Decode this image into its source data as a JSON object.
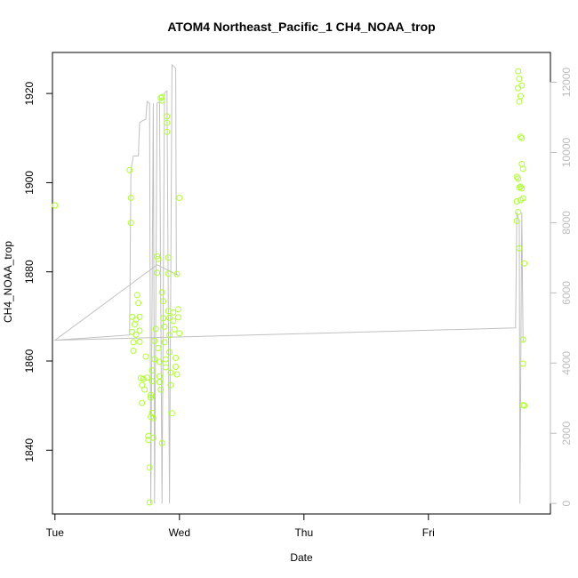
{
  "chart_data": {
    "type": "scatter",
    "title": "ATOM4 Northeast_Pacific_1 CH4_NOAA_trop",
    "xlabel": "Date",
    "ylabel": "CH4_NOAA_trop",
    "x_ticks": [
      "Tue",
      "Wed",
      "Thu",
      "Fri"
    ],
    "y_ticks": [
      1840,
      1860,
      1880,
      1900,
      1920
    ],
    "y2_ticks": [
      0,
      2000,
      4000,
      6000,
      8000,
      10000,
      12000
    ],
    "xlim": [
      -0.02,
      3.98
    ],
    "ylim": [
      1825.7,
      1929.2
    ],
    "y2lim": [
      -300,
      12850
    ],
    "grid": false,
    "colors": {
      "points": "#adff2f",
      "line": "#c0c0c0",
      "axis": "#000000",
      "right_axis": "#bdbdbd"
    },
    "series": [
      {
        "type": "scatter",
        "y_axis": "left",
        "points": [
          [
            0.0,
            1894.9
          ],
          [
            0.6,
            1902.8
          ],
          [
            0.61,
            1896.6
          ],
          [
            0.61,
            1891.0
          ],
          [
            0.62,
            1869.9
          ],
          [
            0.62,
            1866.5
          ],
          [
            0.63,
            1864.2
          ],
          [
            0.63,
            1862.3
          ],
          [
            0.64,
            1868.2
          ],
          [
            0.65,
            1869.3
          ],
          [
            0.65,
            1865.9
          ],
          [
            0.66,
            1874.8
          ],
          [
            0.67,
            1873.0
          ],
          [
            0.68,
            1869.9
          ],
          [
            0.68,
            1866.8
          ],
          [
            0.68,
            1864.3
          ],
          [
            0.69,
            1856.2
          ],
          [
            0.7,
            1854.6
          ],
          [
            0.7,
            1850.6
          ],
          [
            0.71,
            1856.0
          ],
          [
            0.72,
            1853.6
          ],
          [
            0.73,
            1861.0
          ],
          [
            0.74,
            1856.3
          ],
          [
            0.75,
            1843.2
          ],
          [
            0.75,
            1842.3
          ],
          [
            0.76,
            1828.3
          ],
          [
            0.76,
            1836.1
          ],
          [
            0.77,
            1852.4
          ],
          [
            0.77,
            1851.8
          ],
          [
            0.77,
            1847.5
          ],
          [
            0.78,
            1855.5
          ],
          [
            0.78,
            1857.9
          ],
          [
            0.79,
            1842.8
          ],
          [
            0.79,
            1847.2
          ],
          [
            0.8,
            1864.5
          ],
          [
            0.81,
            1867.2
          ],
          [
            0.82,
            1879.8
          ],
          [
            0.82,
            1883.5
          ],
          [
            0.83,
            1882.9
          ],
          [
            0.83,
            1862.9
          ],
          [
            0.84,
            1859.8
          ],
          [
            0.84,
            1856.6
          ],
          [
            0.84,
            1855.3
          ],
          [
            0.85,
            1853.6
          ],
          [
            0.85,
            1919.0
          ],
          [
            0.86,
            1918.4
          ],
          [
            0.86,
            1919.2
          ],
          [
            0.86,
            1875.4
          ],
          [
            0.87,
            1873.4
          ],
          [
            0.87,
            1869.6
          ],
          [
            0.88,
            1867.7
          ],
          [
            0.88,
            1864.2
          ],
          [
            0.89,
            1860.4
          ],
          [
            0.89,
            1858.6
          ],
          [
            0.9,
            1914.9
          ],
          [
            0.9,
            1913.4
          ],
          [
            0.9,
            1911.4
          ],
          [
            0.91,
            1883.2
          ],
          [
            0.91,
            1879.6
          ],
          [
            0.91,
            1871.2
          ],
          [
            0.92,
            1869.7
          ],
          [
            0.92,
            1865.8
          ],
          [
            0.92,
            1862.0
          ],
          [
            0.93,
            1857.4
          ],
          [
            0.93,
            1854.6
          ],
          [
            0.94,
            1848.3
          ],
          [
            0.95,
            1870.9
          ],
          [
            0.95,
            1869.0
          ],
          [
            0.96,
            1867.1
          ],
          [
            0.97,
            1860.7
          ],
          [
            0.97,
            1858.7
          ],
          [
            0.98,
            1857.0
          ],
          [
            0.98,
            1879.5
          ],
          [
            0.99,
            1871.6
          ],
          [
            0.99,
            1869.8
          ],
          [
            1.0,
            1866.2
          ],
          [
            1.0,
            1896.6
          ],
          [
            0.86,
            1841.6
          ],
          [
            0.78,
            1848.4
          ],
          [
            0.8,
            1860.4
          ],
          [
            3.72,
            1925.0
          ],
          [
            3.72,
            1921.2
          ],
          [
            3.73,
            1923.3
          ],
          [
            3.73,
            1918.2
          ],
          [
            3.74,
            1919.4
          ],
          [
            3.75,
            1921.8
          ],
          [
            3.74,
            1910.3
          ],
          [
            3.75,
            1910.0
          ],
          [
            3.75,
            1904.2
          ],
          [
            3.76,
            1903.1
          ],
          [
            3.71,
            1901.3
          ],
          [
            3.72,
            1900.9
          ],
          [
            3.73,
            1898.9
          ],
          [
            3.74,
            1899.1
          ],
          [
            3.75,
            1898.7
          ],
          [
            3.71,
            1895.8
          ],
          [
            3.72,
            1893.4
          ],
          [
            3.71,
            1891.4
          ],
          [
            3.74,
            1896.1
          ],
          [
            3.76,
            1896.5
          ],
          [
            3.73,
            1885.3
          ],
          [
            3.77,
            1881.9
          ],
          [
            3.76,
            1864.8
          ],
          [
            3.76,
            1859.4
          ],
          [
            3.77,
            1850.0
          ],
          [
            3.76,
            1850.1
          ]
        ]
      },
      {
        "type": "line",
        "y_axis": "right",
        "name": "",
        "points": [
          [
            0.0,
            4650
          ],
          [
            0.6,
            4800
          ],
          [
            0.61,
            9500
          ],
          [
            0.63,
            9900
          ],
          [
            0.65,
            9900
          ],
          [
            0.66,
            9900
          ],
          [
            0.67,
            9900
          ],
          [
            0.68,
            10850
          ],
          [
            0.7,
            10900
          ],
          [
            0.73,
            10950
          ],
          [
            0.74,
            11450
          ],
          [
            0.76,
            11400
          ],
          [
            0.77,
            0
          ],
          [
            0.79,
            11400
          ],
          [
            0.8,
            0
          ],
          [
            0.82,
            11400
          ],
          [
            0.84,
            11450
          ],
          [
            0.86,
            0
          ],
          [
            0.88,
            11700
          ],
          [
            0.9,
            11750
          ],
          [
            0.92,
            0
          ],
          [
            0.94,
            12500
          ],
          [
            0.97,
            12400
          ],
          [
            0.975,
            6550
          ],
          [
            0.99,
            6500
          ],
          [
            0.82,
            6800
          ],
          [
            0.0,
            4650
          ],
          [
            3.7,
            5000
          ],
          [
            3.71,
            8300
          ],
          [
            3.73,
            8000
          ],
          [
            3.735,
            0
          ],
          [
            3.75,
            8300
          ],
          [
            3.76,
            4600
          ]
        ]
      }
    ]
  }
}
